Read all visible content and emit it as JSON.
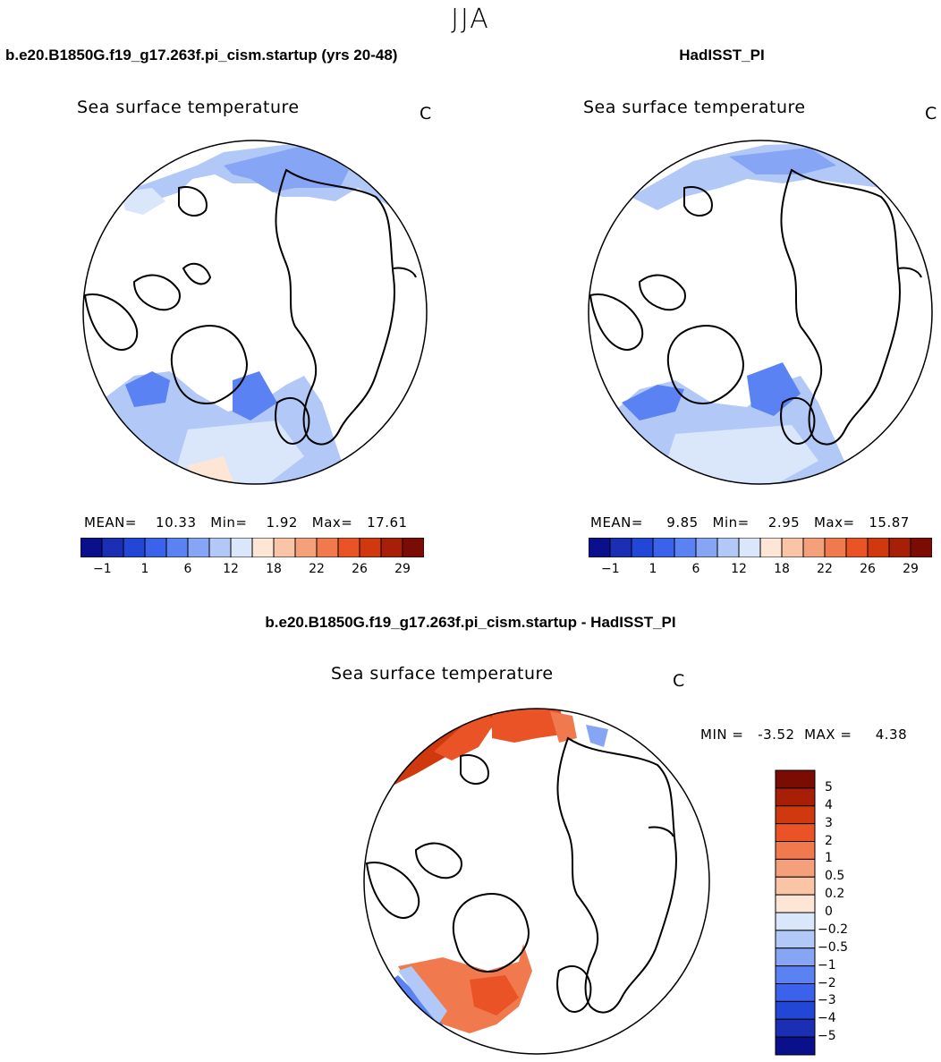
{
  "header": {
    "season": "JJA"
  },
  "panels": [
    {
      "case_title": "b.e20.B1850G.f19_g17.263f.pi_cism.startup (yrs 20-48)",
      "field": "Sea surface temperature",
      "units": "C",
      "stats": "MEAN=    10.33   Min=    1.92   Max=   17.61",
      "colorbar": {
        "ticks": [
          "-1",
          "1",
          "6",
          "12",
          "18",
          "22",
          "26",
          "29"
        ],
        "colors": [
          "#0a0f8c",
          "#1a2fb4",
          "#2246d6",
          "#3b62ea",
          "#5a82f2",
          "#86a6f5",
          "#b2c8f7",
          "#dae7fb",
          "#fde6d6",
          "#f9c5a6",
          "#f4a07a",
          "#f07a4e",
          "#ea5326",
          "#d0380e",
          "#a81f08",
          "#7a0c04"
        ]
      }
    },
    {
      "case_title": "HadISST_PI",
      "field": "Sea surface temperature",
      "units": "C",
      "stats": "MEAN=     9.85   Min=    2.95   Max=   15.87",
      "colorbar": {
        "ticks": [
          "-1",
          "1",
          "6",
          "12",
          "18",
          "22",
          "26",
          "29"
        ],
        "colors": [
          "#0a0f8c",
          "#1a2fb4",
          "#2246d6",
          "#3b62ea",
          "#5a82f2",
          "#86a6f5",
          "#b2c8f7",
          "#dae7fb",
          "#fde6d6",
          "#f9c5a6",
          "#f4a07a",
          "#f07a4e",
          "#ea5326",
          "#d0380e",
          "#a81f08",
          "#7a0c04"
        ]
      }
    }
  ],
  "difference": {
    "title": "b.e20.B1850G.f19_g17.263f.pi_cism.startup - HadISST_PI",
    "field": "Sea surface temperature",
    "units": "C",
    "stats": "MIN =   -3.52  MAX =     4.38",
    "colorbar": {
      "labels": [
        "5",
        "4",
        "3",
        "2",
        "1",
        "0.5",
        "0.2",
        "0",
        "−0.2",
        "−0.5",
        "−1",
        "−2",
        "−3",
        "−4",
        "−5"
      ],
      "colors": [
        "#7a0c04",
        "#a81f08",
        "#d0380e",
        "#ea5326",
        "#f07a4e",
        "#f4a07a",
        "#f9c5a6",
        "#fde6d6",
        "#dae7fb",
        "#b2c8f7",
        "#86a6f5",
        "#5a82f2",
        "#3b62ea",
        "#2246d6",
        "#1a2fb4",
        "#0a0f8c"
      ]
    }
  }
}
